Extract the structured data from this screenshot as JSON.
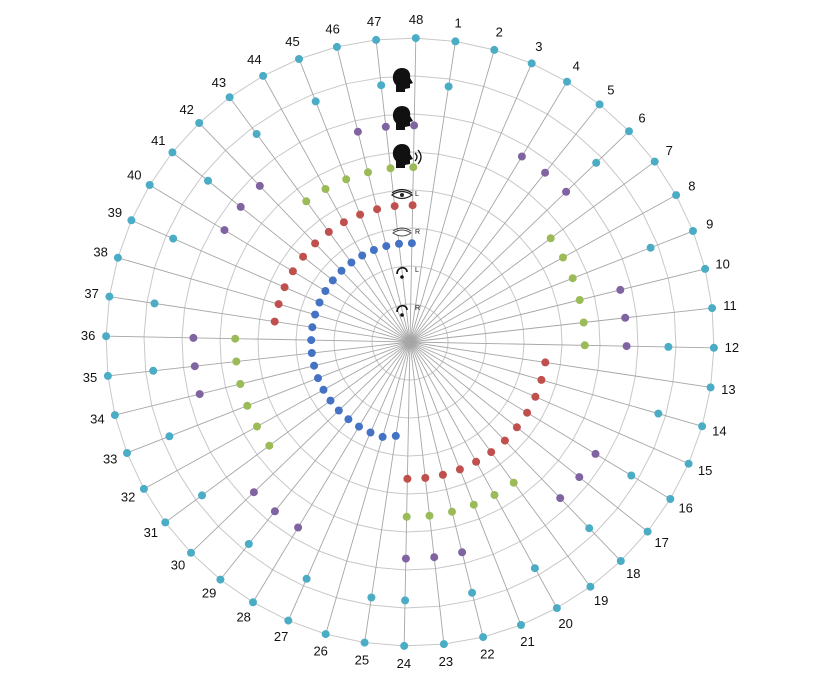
{
  "chart_data": {
    "type": "radar",
    "title": "",
    "grid": true,
    "rings": 8,
    "spoke_labels": [
      "1",
      "2",
      "3",
      "4",
      "5",
      "6",
      "7",
      "8",
      "9",
      "10",
      "11",
      "12",
      "13",
      "14",
      "15",
      "16",
      "17",
      "18",
      "19",
      "20",
      "21",
      "22",
      "23",
      "24",
      "25",
      "26",
      "27",
      "28",
      "29",
      "30",
      "31",
      "32",
      "33",
      "34",
      "35",
      "36",
      "37",
      "38",
      "39",
      "40",
      "41",
      "42",
      "43",
      "44",
      "45",
      "46",
      "47",
      "48"
    ],
    "series": [
      {
        "icon": "ear-right-icon",
        "row_label": "R",
        "color": "#4472c4",
        "values": [
          null,
          null,
          null,
          null,
          null,
          null,
          null,
          null,
          null,
          null,
          null,
          null,
          null,
          null,
          null,
          null,
          null,
          null,
          null,
          null,
          null,
          null,
          null,
          null,
          2.5,
          2.6,
          2.6,
          2.6,
          2.6,
          2.6,
          2.6,
          2.6,
          2.6,
          2.6,
          2.6,
          2.6,
          2.6,
          2.6,
          2.6,
          2.6,
          2.6,
          2.6,
          2.6,
          2.6,
          2.6,
          2.6,
          2.6,
          2.6
        ]
      },
      {
        "icon": "ear-left-icon",
        "row_label": "L",
        "color": "#c0504d",
        "values": [
          null,
          null,
          null,
          null,
          null,
          null,
          null,
          null,
          null,
          null,
          null,
          null,
          3.6,
          3.6,
          3.6,
          3.6,
          3.6,
          3.6,
          3.6,
          3.6,
          3.6,
          3.6,
          3.6,
          3.6,
          null,
          null,
          null,
          null,
          null,
          null,
          null,
          null,
          null,
          null,
          null,
          null,
          3.6,
          3.6,
          3.6,
          3.6,
          3.6,
          3.6,
          3.6,
          3.6,
          3.6,
          3.6,
          3.6,
          3.6
        ]
      },
      {
        "icon": "eye-right-icon",
        "row_label": "R",
        "color": "#9bbb59",
        "values": [
          null,
          null,
          null,
          null,
          null,
          null,
          4.6,
          4.6,
          4.6,
          4.6,
          4.6,
          4.6,
          null,
          null,
          null,
          null,
          null,
          null,
          4.6,
          4.6,
          4.6,
          4.6,
          4.6,
          4.6,
          null,
          null,
          null,
          null,
          null,
          null,
          4.6,
          4.6,
          4.6,
          4.6,
          4.6,
          4.6,
          null,
          null,
          null,
          null,
          null,
          null,
          4.6,
          4.6,
          4.6,
          4.6,
          4.6,
          4.6
        ]
      },
      {
        "icon": "eye-left-icon",
        "row_label": "L",
        "color": "#8064a2",
        "values": [
          null,
          null,
          null,
          5.7,
          5.7,
          5.7,
          null,
          null,
          null,
          5.7,
          5.7,
          5.7,
          null,
          null,
          null,
          5.7,
          5.7,
          5.7,
          null,
          null,
          null,
          5.7,
          5.7,
          5.7,
          null,
          null,
          null,
          5.7,
          5.7,
          5.7,
          null,
          null,
          null,
          5.7,
          5.7,
          5.7,
          null,
          null,
          null,
          5.7,
          5.7,
          5.7,
          null,
          null,
          null,
          5.7,
          5.7,
          5.7
        ]
      },
      {
        "icon": "speaking-head-icon",
        "color": "#4bacc6",
        "values": [
          6.8,
          null,
          null,
          null,
          null,
          6.8,
          null,
          null,
          6.8,
          null,
          null,
          6.8,
          null,
          6.8,
          null,
          6.8,
          null,
          6.8,
          null,
          6.8,
          null,
          6.8,
          null,
          6.8,
          6.8,
          null,
          6.8,
          null,
          6.8,
          null,
          6.8,
          null,
          6.8,
          null,
          6.8,
          null,
          6.8,
          null,
          6.8,
          null,
          6.8,
          null,
          6.8,
          null,
          6.8,
          null,
          6.8,
          null
        ]
      },
      {
        "icon": "head-icon",
        "color": "#4bacc6",
        "values": [
          null,
          null,
          null,
          null,
          null,
          null,
          null,
          null,
          null,
          null,
          null,
          null,
          null,
          null,
          null,
          null,
          null,
          null,
          null,
          null,
          null,
          null,
          null,
          null,
          null,
          null,
          null,
          null,
          null,
          null,
          null,
          null,
          null,
          null,
          null,
          null,
          null,
          null,
          null,
          null,
          null,
          null,
          null,
          null,
          null,
          null,
          null,
          null
        ]
      },
      {
        "icon": "head-icon",
        "color": "#4bacc6",
        "values": [
          8,
          8,
          8,
          8,
          8,
          8,
          8,
          8,
          8,
          8,
          8,
          8,
          8,
          8,
          8,
          8,
          8,
          8,
          8,
          8,
          8,
          8,
          8,
          8,
          8,
          8,
          8,
          8,
          8,
          8,
          8,
          8,
          8,
          8,
          8,
          8,
          8,
          8,
          8,
          8,
          8,
          8,
          8,
          8,
          8,
          8,
          8,
          8
        ]
      }
    ]
  }
}
